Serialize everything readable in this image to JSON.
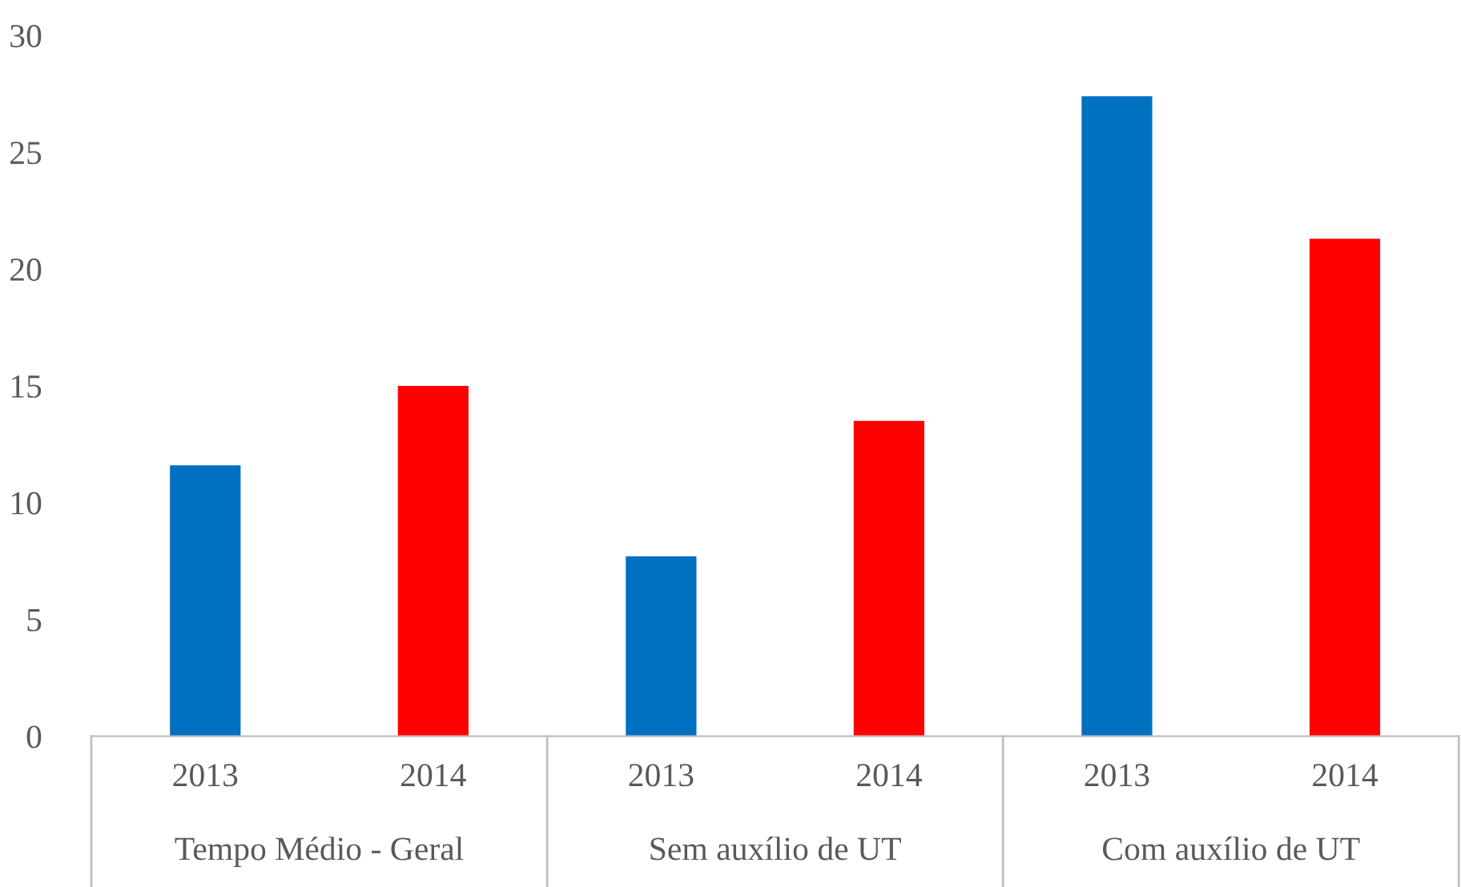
{
  "chart_data": {
    "type": "bar",
    "categories": [
      "2013",
      "2014",
      "2013",
      "2014",
      "2013",
      "2014"
    ],
    "values": [
      11.6,
      15.0,
      7.7,
      13.5,
      27.4,
      21.3
    ],
    "colors": [
      "#0070c0",
      "#ff0000",
      "#0070c0",
      "#ff0000",
      "#0070c0",
      "#ff0000"
    ],
    "annotations": [
      "Tempo Médio - Geral",
      "Sem auxílio de UT",
      "Com auxílio de UT"
    ],
    "ylim": [
      0,
      30
    ],
    "yticks": [
      0,
      5,
      10,
      15,
      20,
      25,
      30
    ],
    "grid": false,
    "legend": false
  }
}
